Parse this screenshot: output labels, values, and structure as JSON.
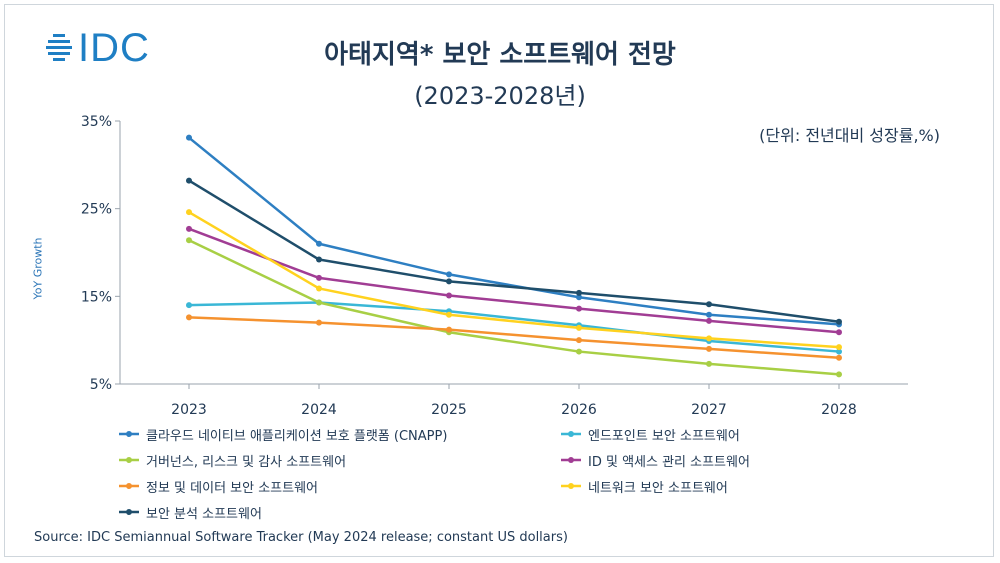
{
  "logo": {
    "text": "IDC"
  },
  "header": {
    "title": "아태지역* 보안 소프트웨어 전망",
    "subtitle": "(2023-2028년)",
    "unit_note": "(단위: 전년대비 성장률,%)"
  },
  "chart_data": {
    "type": "line",
    "ylabel": "YoY Growth",
    "ylim": [
      5,
      35
    ],
    "yticks": [
      5,
      15,
      25,
      35
    ],
    "ytick_labels": [
      "5%",
      "15%",
      "25%",
      "35%"
    ],
    "x": [
      "2023",
      "2024",
      "2025",
      "2026",
      "2027",
      "2028"
    ],
    "grid": false,
    "legend_position": "bottom",
    "series": [
      {
        "name": "클라우드 네이티브 애플리케이션 보호 플랫폼 (CNAPP)",
        "color": "#2e7fc2",
        "values": [
          33.1,
          21.0,
          17.5,
          14.9,
          12.9,
          11.8
        ]
      },
      {
        "name": "엔드포인트 보안 소프트웨어",
        "color": "#3ab7d6",
        "values": [
          14.0,
          14.3,
          13.3,
          11.7,
          9.9,
          8.7
        ]
      },
      {
        "name": "거버넌스, 리스크 및 감사 소프트웨어",
        "color": "#a8cf45",
        "values": [
          21.4,
          14.3,
          10.9,
          8.7,
          7.3,
          6.1
        ]
      },
      {
        "name": "ID 및 액세스 관리 소프트웨어",
        "color": "#a13d94",
        "values": [
          22.7,
          17.1,
          15.1,
          13.6,
          12.2,
          10.9
        ]
      },
      {
        "name": "정보 및 데이터 보안 소프트웨어",
        "color": "#f5922f",
        "values": [
          12.6,
          12.0,
          11.2,
          10.0,
          9.0,
          8.0
        ]
      },
      {
        "name": "네트워크 보안 소프트웨어",
        "color": "#ffd21f",
        "values": [
          24.6,
          15.9,
          12.9,
          11.4,
          10.2,
          9.2
        ]
      },
      {
        "name": "보안 분석 소프트웨어",
        "color": "#1f4e6b",
        "values": [
          28.2,
          19.2,
          16.7,
          15.4,
          14.1,
          12.1
        ]
      }
    ]
  },
  "footer": {
    "source": "Source:  IDC Semiannual Software Tracker (May 2024 release; constant US dollars)"
  }
}
